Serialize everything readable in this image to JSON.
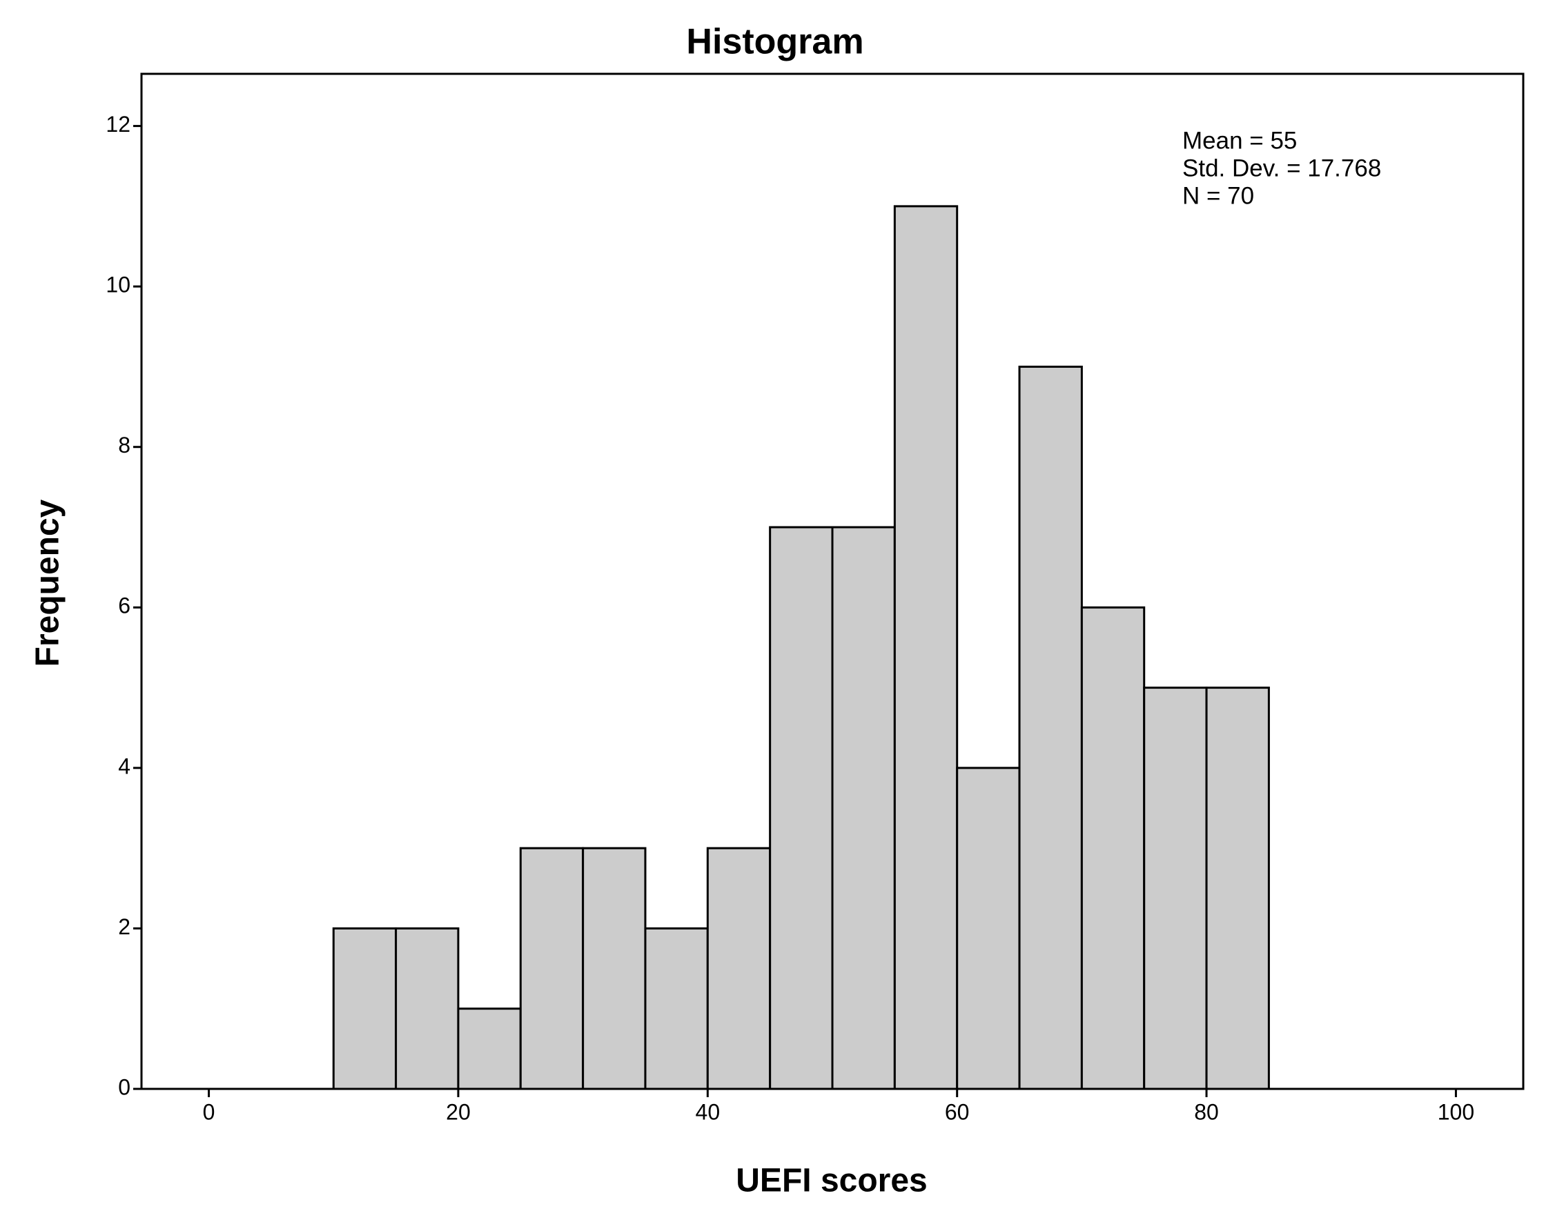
{
  "chart_data": {
    "type": "histogram",
    "title": "Histogram",
    "x_label": "UEFI scores",
    "y_label": "Frequency",
    "bins": [
      10,
      15,
      20,
      25,
      30,
      35,
      40,
      45,
      50,
      55,
      60,
      65,
      70,
      75,
      80,
      85
    ],
    "values": [
      2,
      2,
      1,
      3,
      3,
      2,
      3,
      7,
      7,
      11,
      4,
      9,
      6,
      5,
      5
    ],
    "color": "#cccccc",
    "xlim": [
      -5.4,
      105.4
    ],
    "xticks": [
      0,
      20,
      40,
      60,
      80,
      100
    ],
    "ylim": [
      0,
      12.65
    ],
    "yticks": [
      0,
      2,
      4,
      6,
      8,
      10,
      12
    ],
    "annotations": [
      "Mean = 55",
      "Std. Dev. = 17.768",
      "N = 70"
    ]
  }
}
